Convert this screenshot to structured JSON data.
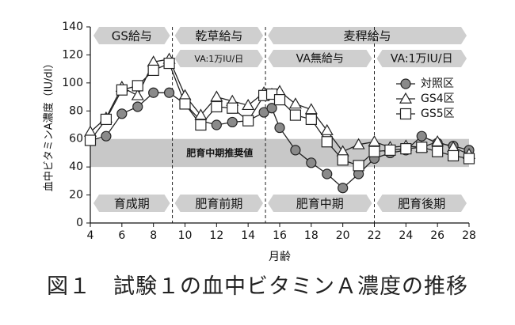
{
  "figure_caption": "図１　試験１の血中ビタミンＡ濃度の推移",
  "chart_data": {
    "type": "line",
    "xlabel": "月齢",
    "ylabel": "血中ビタミンA濃度（IU/dl）",
    "xlim": [
      4,
      28
    ],
    "ylim": [
      0,
      140
    ],
    "xticks": [
      4,
      6,
      8,
      10,
      12,
      14,
      16,
      18,
      20,
      22,
      24,
      26,
      28
    ],
    "yticks": [
      0,
      20,
      40,
      60,
      80,
      100,
      120,
      140
    ],
    "grid": false,
    "legend_position": "right",
    "reference_band": {
      "label": "肥育中期推奨値",
      "y_range": [
        40,
        60
      ]
    },
    "phase_dividers_x": [
      9.2,
      15.1,
      22
    ],
    "feed_periods": [
      {
        "label": "GS給与",
        "x_range": [
          4,
          9.2
        ]
      },
      {
        "label": "乾草給与",
        "x_range": [
          9.2,
          15.1
        ]
      },
      {
        "label": "麦稈給与",
        "x_range": [
          15.1,
          28
        ]
      }
    ],
    "vitamin_periods": [
      {
        "label": "VA:1万IU/日",
        "x_range": [
          9.2,
          15.1
        ]
      },
      {
        "label": "VA無給与",
        "x_range": [
          15.1,
          22
        ]
      },
      {
        "label": "VA:1万IU/日",
        "x_range": [
          22,
          28
        ]
      }
    ],
    "growth_stages": [
      {
        "label": "育成期",
        "x_range": [
          4,
          9.2
        ]
      },
      {
        "label": "肥育前期",
        "x_range": [
          9.2,
          15.1
        ]
      },
      {
        "label": "肥育中期",
        "x_range": [
          15.1,
          22
        ]
      },
      {
        "label": "肥育後期",
        "x_range": [
          22,
          28
        ]
      }
    ],
    "series": [
      {
        "name": "対照区",
        "marker": "circle",
        "points": [
          [
            4,
            59
          ],
          [
            5,
            62
          ],
          [
            6,
            78
          ],
          [
            7,
            83
          ],
          [
            8,
            93
          ],
          [
            9,
            93
          ],
          [
            10,
            85
          ],
          [
            11,
            73
          ],
          [
            12,
            70
          ],
          [
            13,
            72
          ],
          [
            14,
            73
          ],
          [
            15,
            79
          ],
          [
            15.5,
            82
          ],
          [
            16,
            68
          ],
          [
            17,
            52
          ],
          [
            18,
            43
          ],
          [
            19,
            35
          ],
          [
            20,
            25
          ],
          [
            21,
            35
          ],
          [
            22,
            46
          ],
          [
            23,
            50
          ],
          [
            24,
            52
          ],
          [
            25,
            62
          ],
          [
            26,
            57
          ],
          [
            27,
            55
          ],
          [
            28,
            52
          ]
        ]
      },
      {
        "name": "GS4区",
        "marker": "triangle",
        "points": [
          [
            4,
            65
          ],
          [
            5,
            75
          ],
          [
            6,
            97
          ],
          [
            7,
            91
          ],
          [
            8,
            115
          ],
          [
            9,
            117
          ],
          [
            10,
            91
          ],
          [
            11,
            77
          ],
          [
            12,
            90
          ],
          [
            13,
            87
          ],
          [
            14,
            84
          ],
          [
            15,
            93
          ],
          [
            15.5,
            92
          ],
          [
            16,
            94
          ],
          [
            17,
            85
          ],
          [
            18,
            81
          ],
          [
            19,
            66
          ],
          [
            20,
            51
          ],
          [
            21,
            56
          ],
          [
            22,
            58
          ],
          [
            23,
            54
          ],
          [
            24,
            55
          ],
          [
            25,
            54
          ],
          [
            26,
            58
          ],
          [
            27,
            54
          ],
          [
            28,
            49
          ]
        ]
      },
      {
        "name": "GS5区",
        "marker": "square",
        "points": [
          [
            4,
            59
          ],
          [
            5,
            74
          ],
          [
            6,
            95
          ],
          [
            7,
            98
          ],
          [
            8,
            109
          ],
          [
            9,
            114
          ],
          [
            10,
            85
          ],
          [
            11,
            70
          ],
          [
            12,
            83
          ],
          [
            13,
            82
          ],
          [
            14,
            73
          ],
          [
            15,
            91
          ],
          [
            15.5,
            92
          ],
          [
            16,
            88
          ],
          [
            17,
            77
          ],
          [
            18,
            74
          ],
          [
            19,
            58
          ],
          [
            20,
            45
          ],
          [
            21,
            41
          ],
          [
            22,
            51
          ],
          [
            23,
            52
          ],
          [
            24,
            53
          ],
          [
            25,
            54
          ],
          [
            26,
            51
          ],
          [
            27,
            48
          ],
          [
            28,
            46
          ]
        ]
      }
    ]
  }
}
